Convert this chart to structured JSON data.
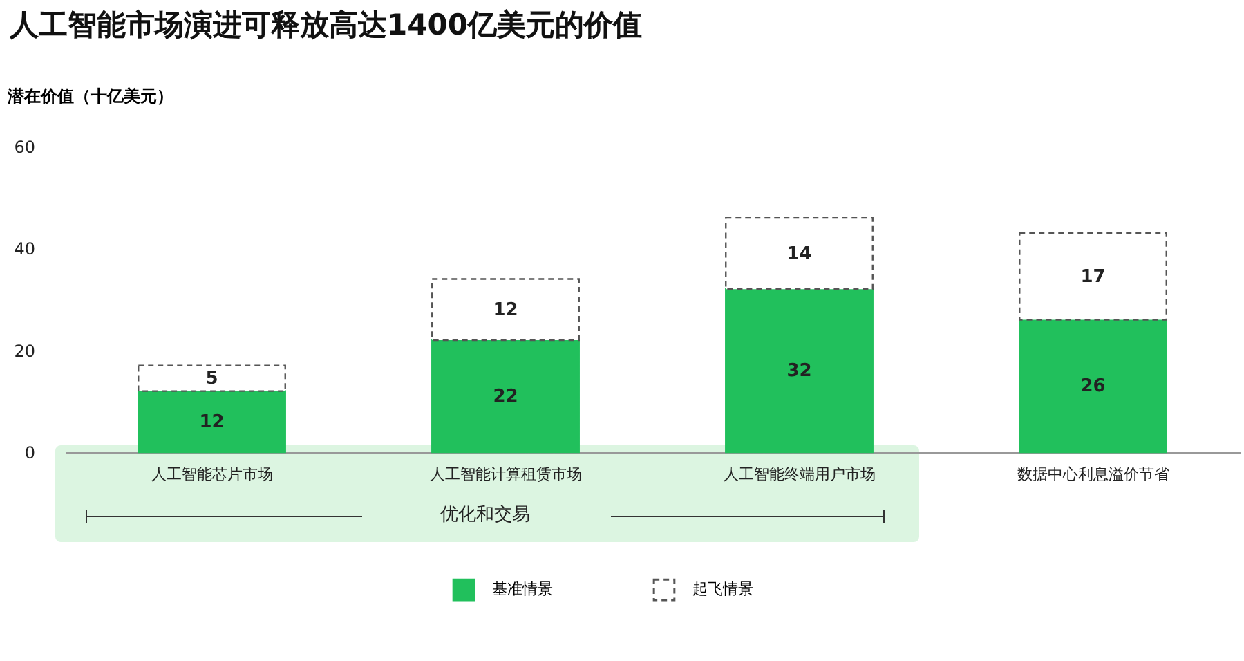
{
  "chart_data": {
    "type": "bar",
    "title": "人工智能市场演进可释放高达1400亿美元的价值",
    "ylabel": "潜在价值（十亿美元）",
    "categories": [
      "人工智能芯片市场",
      "人工智能计算租赁市场",
      "人工智能终端用户市场",
      "数据中心利息溢价节省"
    ],
    "series": [
      {
        "name": "基准情景",
        "color": "#21c05c",
        "values": [
          12,
          22,
          32,
          26
        ]
      },
      {
        "name": "起飞情景",
        "color": "#ffffff",
        "line_style": "dashed",
        "values": [
          5,
          12,
          14,
          17
        ]
      }
    ],
    "stacked": true,
    "data_labels": true,
    "ylim": [
      0,
      60
    ],
    "yticks": [
      0,
      20,
      40,
      60
    ],
    "grid": false,
    "legend": "bottom",
    "annotations": [
      "优化和交易"
    ]
  }
}
